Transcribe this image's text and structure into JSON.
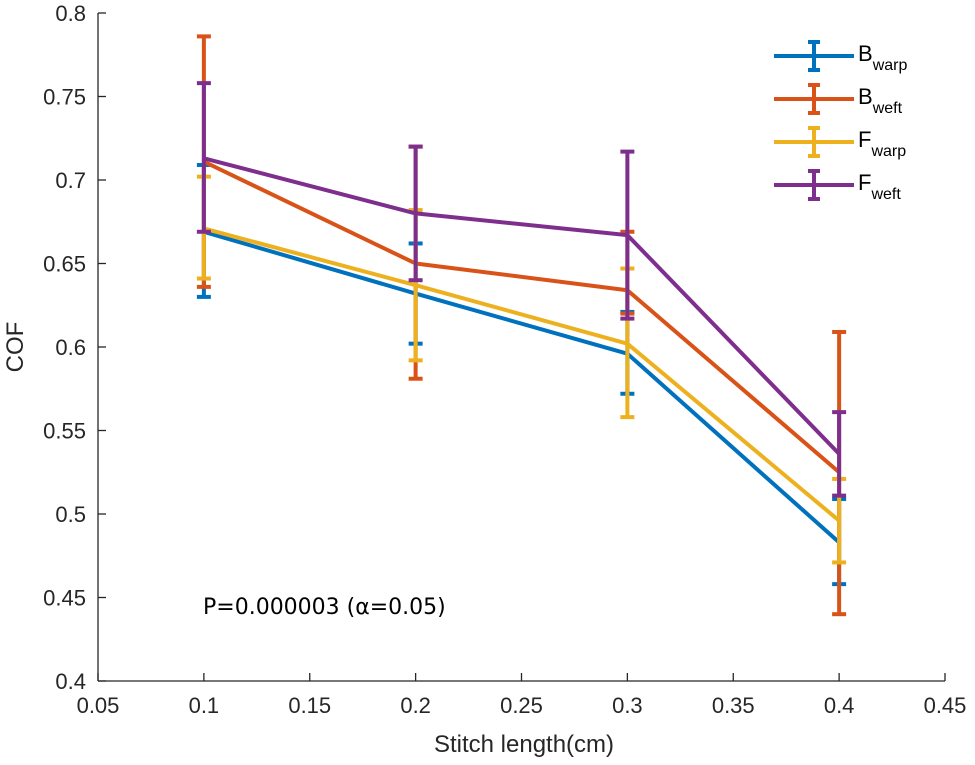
{
  "chart_data": {
    "type": "line",
    "title": "",
    "xlabel": "Stitch length(cm)",
    "ylabel": "COF",
    "xlim": [
      0.05,
      0.45
    ],
    "ylim": [
      0.4,
      0.8
    ],
    "x_ticks": [
      0.05,
      0.1,
      0.15,
      0.2,
      0.25,
      0.3,
      0.35,
      0.4,
      0.45
    ],
    "x_tick_labels": [
      "0.05",
      "0.1",
      "0.15",
      "0.2",
      "0.25",
      "0.3",
      "0.35",
      "0.4",
      "0.45"
    ],
    "y_ticks": [
      0.4,
      0.45,
      0.5,
      0.55,
      0.6,
      0.65,
      0.7,
      0.75,
      0.8
    ],
    "y_tick_labels": [
      "0.4",
      "0.45",
      "0.5",
      "0.55",
      "0.6",
      "0.65",
      "0.7",
      "0.75",
      "0.8"
    ],
    "grid": false,
    "legend_position": "top-right",
    "annotation": "P=0.000003 (α=0.05)",
    "x": [
      0.1,
      0.2,
      0.3,
      0.4
    ],
    "series": [
      {
        "name": "Bwarp",
        "label_main": "B",
        "label_sub": "warp",
        "color": "#0072BD",
        "values": [
          0.669,
          0.632,
          0.596,
          0.483
        ],
        "lower": [
          0.63,
          0.602,
          0.572,
          0.458
        ],
        "upper": [
          0.709,
          0.662,
          0.621,
          0.509
        ]
      },
      {
        "name": "Bweft",
        "label_main": "B",
        "label_sub": "weft",
        "color": "#D95319",
        "values": [
          0.711,
          0.65,
          0.634,
          0.525
        ],
        "lower": [
          0.636,
          0.581,
          0.62,
          0.44
        ],
        "upper": [
          0.786,
          0.72,
          0.669,
          0.609
        ]
      },
      {
        "name": "Fwarp",
        "label_main": "F",
        "label_sub": "warp",
        "color": "#EDB120",
        "values": [
          0.671,
          0.637,
          0.602,
          0.496
        ],
        "lower": [
          0.641,
          0.592,
          0.558,
          0.471
        ],
        "upper": [
          0.702,
          0.682,
          0.647,
          0.521
        ]
      },
      {
        "name": "Fweft",
        "label_main": "F",
        "label_sub": "weft",
        "color": "#7E2F8E",
        "values": [
          0.713,
          0.68,
          0.667,
          0.536
        ],
        "lower": [
          0.669,
          0.64,
          0.617,
          0.511
        ],
        "upper": [
          0.758,
          0.72,
          0.717,
          0.561
        ]
      }
    ]
  }
}
